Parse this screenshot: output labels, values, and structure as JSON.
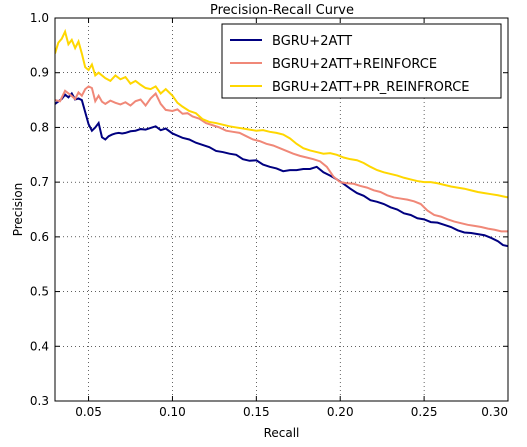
{
  "chart_data": {
    "type": "line",
    "title": "Precision-Recall Curve",
    "xlabel": "Recall",
    "ylabel": "Precision",
    "xlim": [
      0.03,
      0.3
    ],
    "ylim": [
      0.3,
      1.0
    ],
    "xticks": [
      "0.05",
      "0.10",
      "0.15",
      "0.20",
      "0.25",
      "0.30"
    ],
    "yticks": [
      "0.3",
      "0.4",
      "0.5",
      "0.6",
      "0.7",
      "0.8",
      "0.9",
      "1.0"
    ],
    "grid": true,
    "legend_position": "top-right",
    "series": [
      {
        "name": "BGRU+2ATT",
        "color": "#000080",
        "x": [
          0.03,
          0.034,
          0.036,
          0.038,
          0.04,
          0.042,
          0.044,
          0.046,
          0.048,
          0.05,
          0.052,
          0.054,
          0.056,
          0.058,
          0.06,
          0.062,
          0.064,
          0.066,
          0.068,
          0.07,
          0.072,
          0.075,
          0.078,
          0.081,
          0.084,
          0.087,
          0.09,
          0.093,
          0.096,
          0.1,
          0.103,
          0.106,
          0.11,
          0.114,
          0.118,
          0.122,
          0.126,
          0.13,
          0.134,
          0.138,
          0.142,
          0.146,
          0.15,
          0.154,
          0.158,
          0.162,
          0.166,
          0.17,
          0.174,
          0.178,
          0.182,
          0.186,
          0.19,
          0.194,
          0.198,
          0.202,
          0.206,
          0.21,
          0.214,
          0.218,
          0.222,
          0.226,
          0.23,
          0.234,
          0.238,
          0.242,
          0.246,
          0.25,
          0.254,
          0.258,
          0.262,
          0.266,
          0.27,
          0.274,
          0.278,
          0.282,
          0.286,
          0.29,
          0.294,
          0.297,
          0.3
        ],
        "values": [
          0.843,
          0.852,
          0.86,
          0.855,
          0.862,
          0.851,
          0.853,
          0.85,
          0.828,
          0.806,
          0.794,
          0.8,
          0.808,
          0.782,
          0.778,
          0.784,
          0.787,
          0.789,
          0.79,
          0.789,
          0.79,
          0.793,
          0.794,
          0.797,
          0.796,
          0.799,
          0.802,
          0.795,
          0.798,
          0.789,
          0.785,
          0.781,
          0.778,
          0.772,
          0.768,
          0.764,
          0.757,
          0.755,
          0.752,
          0.75,
          0.742,
          0.739,
          0.74,
          0.732,
          0.728,
          0.725,
          0.72,
          0.722,
          0.722,
          0.724,
          0.724,
          0.728,
          0.718,
          0.712,
          0.705,
          0.697,
          0.688,
          0.68,
          0.675,
          0.667,
          0.664,
          0.66,
          0.654,
          0.65,
          0.643,
          0.64,
          0.634,
          0.632,
          0.627,
          0.626,
          0.622,
          0.618,
          0.612,
          0.608,
          0.607,
          0.605,
          0.603,
          0.598,
          0.592,
          0.585,
          0.583
        ]
      },
      {
        "name": "BGRU+2ATT+REINFORCE",
        "color": "#f08878",
        "x": [
          0.03,
          0.033,
          0.036,
          0.039,
          0.042,
          0.044,
          0.046,
          0.048,
          0.05,
          0.052,
          0.054,
          0.056,
          0.058,
          0.06,
          0.063,
          0.066,
          0.069,
          0.072,
          0.075,
          0.078,
          0.081,
          0.084,
          0.087,
          0.09,
          0.093,
          0.096,
          0.1,
          0.103,
          0.106,
          0.109,
          0.112,
          0.116,
          0.12,
          0.124,
          0.128,
          0.132,
          0.136,
          0.14,
          0.144,
          0.148,
          0.152,
          0.156,
          0.16,
          0.164,
          0.168,
          0.172,
          0.176,
          0.18,
          0.184,
          0.188,
          0.192,
          0.196,
          0.2,
          0.204,
          0.208,
          0.212,
          0.216,
          0.22,
          0.224,
          0.228,
          0.232,
          0.236,
          0.24,
          0.244,
          0.248,
          0.252,
          0.256,
          0.26,
          0.264,
          0.268,
          0.272,
          0.276,
          0.28,
          0.284,
          0.288,
          0.292,
          0.296,
          0.3
        ],
        "values": [
          0.85,
          0.848,
          0.867,
          0.86,
          0.852,
          0.864,
          0.858,
          0.87,
          0.875,
          0.872,
          0.848,
          0.858,
          0.847,
          0.843,
          0.849,
          0.845,
          0.842,
          0.846,
          0.84,
          0.848,
          0.851,
          0.84,
          0.853,
          0.862,
          0.843,
          0.832,
          0.83,
          0.833,
          0.825,
          0.826,
          0.82,
          0.816,
          0.808,
          0.804,
          0.8,
          0.794,
          0.792,
          0.79,
          0.784,
          0.778,
          0.775,
          0.77,
          0.767,
          0.762,
          0.757,
          0.752,
          0.748,
          0.745,
          0.742,
          0.738,
          0.728,
          0.71,
          0.7,
          0.698,
          0.697,
          0.693,
          0.69,
          0.685,
          0.682,
          0.676,
          0.672,
          0.67,
          0.668,
          0.665,
          0.66,
          0.648,
          0.64,
          0.637,
          0.632,
          0.628,
          0.625,
          0.622,
          0.62,
          0.618,
          0.615,
          0.613,
          0.61,
          0.61
        ]
      },
      {
        "name": "BGRU+2ATT+PR_REINFRORCE",
        "color": "#ffd700",
        "x": [
          0.03,
          0.032,
          0.034,
          0.036,
          0.038,
          0.04,
          0.042,
          0.044,
          0.046,
          0.048,
          0.05,
          0.052,
          0.054,
          0.056,
          0.058,
          0.06,
          0.063,
          0.066,
          0.069,
          0.072,
          0.075,
          0.078,
          0.081,
          0.084,
          0.087,
          0.09,
          0.093,
          0.096,
          0.1,
          0.103,
          0.106,
          0.11,
          0.114,
          0.118,
          0.122,
          0.126,
          0.13,
          0.134,
          0.138,
          0.142,
          0.146,
          0.15,
          0.154,
          0.158,
          0.162,
          0.166,
          0.17,
          0.174,
          0.178,
          0.182,
          0.186,
          0.19,
          0.194,
          0.198,
          0.202,
          0.206,
          0.21,
          0.214,
          0.218,
          0.222,
          0.226,
          0.23,
          0.234,
          0.238,
          0.242,
          0.246,
          0.25,
          0.254,
          0.258,
          0.262,
          0.266,
          0.27,
          0.274,
          0.278,
          0.282,
          0.286,
          0.29,
          0.294,
          0.297,
          0.3
        ],
        "values": [
          0.935,
          0.955,
          0.962,
          0.975,
          0.952,
          0.96,
          0.945,
          0.957,
          0.935,
          0.91,
          0.905,
          0.915,
          0.895,
          0.9,
          0.895,
          0.89,
          0.885,
          0.895,
          0.888,
          0.892,
          0.88,
          0.885,
          0.878,
          0.872,
          0.87,
          0.875,
          0.862,
          0.87,
          0.858,
          0.845,
          0.838,
          0.83,
          0.826,
          0.815,
          0.81,
          0.808,
          0.805,
          0.802,
          0.8,
          0.798,
          0.796,
          0.794,
          0.795,
          0.792,
          0.79,
          0.787,
          0.78,
          0.77,
          0.762,
          0.758,
          0.755,
          0.752,
          0.753,
          0.75,
          0.745,
          0.742,
          0.74,
          0.735,
          0.728,
          0.722,
          0.718,
          0.715,
          0.712,
          0.708,
          0.705,
          0.702,
          0.7,
          0.7,
          0.698,
          0.695,
          0.692,
          0.69,
          0.688,
          0.685,
          0.682,
          0.68,
          0.678,
          0.676,
          0.674,
          0.672
        ]
      }
    ]
  }
}
